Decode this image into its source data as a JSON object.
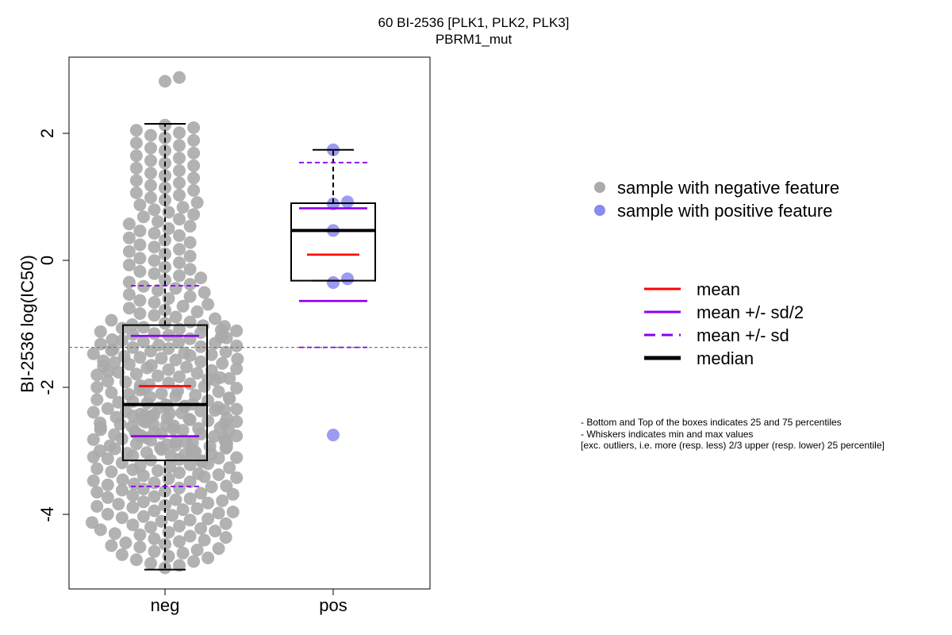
{
  "chart_data": {
    "type": "box-swarm",
    "title": "60 BI-2536 [PLK1, PLK2, PLK3]",
    "subtitle": "PBRM1_mut",
    "ylabel": "BI-2536 log(IC50)",
    "xlabel": "",
    "ylim": [
      -5.2,
      3.0
    ],
    "yticks": [
      -4,
      -2,
      0,
      2
    ],
    "ytick_labels": [
      "-4",
      "-2",
      "0",
      "2"
    ],
    "categories": [
      "neg",
      "pos"
    ],
    "reference_line": -1.37,
    "groups": [
      {
        "name": "neg",
        "color": "#aaaaaa",
        "n_points": 360,
        "q1": -3.15,
        "median": -2.27,
        "q3": -1.02,
        "whisker_low": -4.87,
        "whisker_high": 2.15,
        "mean": -1.98,
        "mean_minus_half_sd": -2.77,
        "mean_plus_half_sd": -1.19,
        "mean_minus_sd": -3.56,
        "mean_plus_sd": -0.4,
        "outliers": [
          2.82,
          2.88
        ]
      },
      {
        "name": "pos",
        "color": "#8a8af0",
        "values": [
          1.74,
          0.92,
          0.89,
          0.47,
          -0.29,
          -0.35,
          -2.75
        ],
        "q1": -0.32,
        "median": 0.47,
        "q3": 0.9,
        "whisker_low": -0.32,
        "whisker_high": 1.74,
        "mean": 0.09,
        "mean_minus_half_sd": -0.64,
        "mean_plus_half_sd": 0.82,
        "mean_minus_sd": -1.37,
        "mean_plus_sd": 1.54,
        "outliers": [
          -2.75
        ]
      }
    ],
    "legend_points": [
      {
        "label": "sample with negative feature",
        "color": "#aaaaaa"
      },
      {
        "label": "sample with positive feature",
        "color": "#8a8af0"
      }
    ],
    "legend_lines": [
      {
        "label": "mean",
        "color": "#ff0000",
        "style": "solid"
      },
      {
        "label": "mean +/- sd/2",
        "color": "#8b00ee",
        "style": "solid"
      },
      {
        "label": "mean +/- sd",
        "color": "#8b00ee",
        "style": "dashed"
      },
      {
        "label": "median",
        "color": "#000000",
        "style": "solid-thick"
      }
    ],
    "notes": [
      "- Bottom and Top of the boxes indicates 25 and 75 percentiles",
      "- Whiskers indicates min and max values",
      "[exc. outliers, i.e. more (resp. less) 2/3 upper (resp. lower) 25 percentile]"
    ]
  }
}
